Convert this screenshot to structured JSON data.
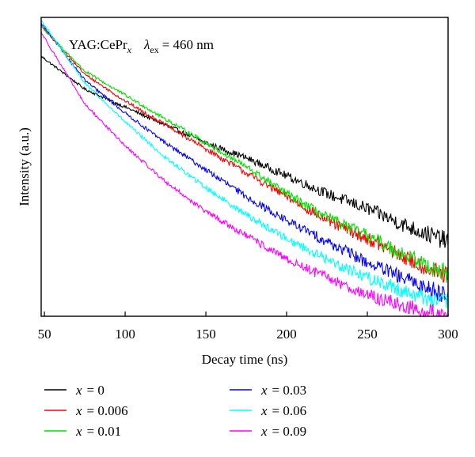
{
  "chart_data": {
    "type": "line",
    "annotation": {
      "material_prefix": "YAG:CePr",
      "material_subscript": "x",
      "lambda_symbol": "λ",
      "lambda_subscript": "ex",
      "lambda_value": "= 460 nm"
    },
    "xlabel": "Decay time (ns)",
    "ylabel": "Intensity (a.u.)",
    "xlim": [
      48,
      300
    ],
    "ylim": [
      0,
      1
    ],
    "x_ticks": [
      50,
      100,
      150,
      200,
      250,
      300
    ],
    "y_scale": "log",
    "y_tick_labels": "none",
    "grid": false,
    "legend_position": "bottom",
    "legend_var": "x",
    "series": [
      {
        "name": "= 0",
        "color": "#000000",
        "x": [
          48,
          75,
          100,
          125,
          150,
          175,
          200,
          225,
          250,
          275,
          300
        ],
        "y": [
          0.87,
          0.76,
          0.7,
          0.64,
          0.58,
          0.53,
          0.47,
          0.41,
          0.36,
          0.3,
          0.25
        ]
      },
      {
        "name": "= 0.006",
        "color": "#ff0000",
        "x": [
          48,
          75,
          100,
          125,
          150,
          175,
          200,
          225,
          250,
          275,
          300
        ],
        "y": [
          0.97,
          0.81,
          0.72,
          0.64,
          0.56,
          0.48,
          0.4,
          0.32,
          0.26,
          0.19,
          0.13
        ]
      },
      {
        "name": "= 0.01",
        "color": "#00e000",
        "x": [
          48,
          75,
          100,
          125,
          150,
          175,
          200,
          225,
          250,
          275,
          300
        ],
        "y": [
          0.97,
          0.82,
          0.74,
          0.66,
          0.58,
          0.5,
          0.41,
          0.33,
          0.27,
          0.2,
          0.14
        ]
      },
      {
        "name": "= 0.03",
        "color": "#0000ff",
        "x": [
          48,
          75,
          100,
          125,
          150,
          175,
          200,
          225,
          250,
          275,
          300
        ],
        "y": [
          0.98,
          0.79,
          0.68,
          0.58,
          0.49,
          0.4,
          0.32,
          0.25,
          0.18,
          0.12,
          0.07
        ]
      },
      {
        "name": "= 0.06",
        "color": "#00ffff",
        "x": [
          48,
          75,
          100,
          125,
          150,
          175,
          200,
          225,
          250,
          275,
          300
        ],
        "y": [
          0.99,
          0.78,
          0.65,
          0.53,
          0.43,
          0.34,
          0.26,
          0.19,
          0.13,
          0.08,
          0.04
        ]
      },
      {
        "name": "= 0.09",
        "color": "#ff00ff",
        "x": [
          48,
          75,
          100,
          125,
          150,
          175,
          200,
          225,
          250,
          275,
          300
        ],
        "y": [
          0.95,
          0.71,
          0.57,
          0.45,
          0.35,
          0.27,
          0.19,
          0.13,
          0.07,
          0.03,
          0.0
        ]
      }
    ]
  }
}
